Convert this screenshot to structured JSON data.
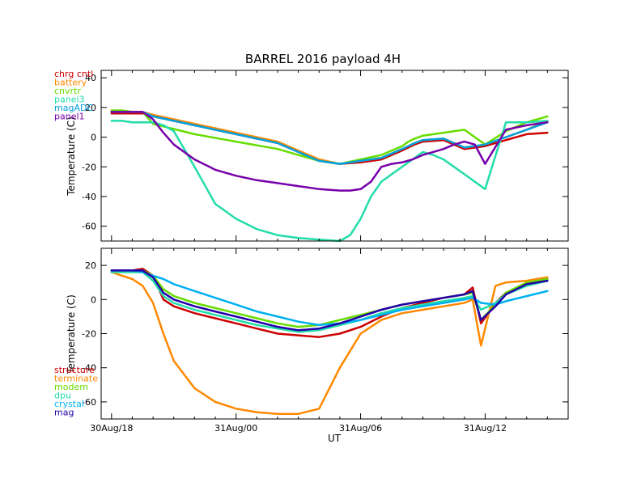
{
  "chart_data": [
    {
      "type": "line",
      "title": "BARREL 2016 payload 4H",
      "xlabel": "",
      "ylabel": "Temperature (C)",
      "xlim": [
        -6.5,
        16
      ],
      "ylim": [
        -70,
        45
      ],
      "yticks": [
        -60,
        -40,
        -20,
        0,
        20,
        40
      ],
      "ytick_labels": [
        "-60",
        "-40",
        "-20",
        "0",
        "20",
        "40"
      ],
      "xticks": [
        -6,
        0,
        6,
        12
      ],
      "xtick_labels": [
        "",
        "",
        "",
        ""
      ],
      "legend_position": "top-left",
      "series": [
        {
          "name": "chrg cntl",
          "color": "#cc0000",
          "x": [
            -6,
            -5.5,
            -5,
            -4.5,
            -4,
            -2,
            0,
            2,
            3,
            4,
            5,
            6,
            7,
            7.5,
            8,
            8.3,
            8.6,
            9,
            10,
            11,
            12,
            13,
            14,
            15
          ],
          "values": [
            16,
            16,
            16,
            16,
            14,
            8,
            2,
            -4,
            -10,
            -16,
            -18,
            -17,
            -15,
            -12,
            -9,
            -7,
            -5,
            -3,
            -2,
            -8,
            -6,
            -2,
            2,
            3
          ]
        },
        {
          "name": "battery",
          "color": "#ff8800",
          "x": [
            -6,
            -5.5,
            -5,
            -4.5,
            -4,
            -2,
            0,
            2,
            3,
            4,
            5,
            6,
            7,
            7.5,
            8,
            8.3,
            8.6,
            9,
            10,
            11,
            12,
            13,
            14,
            15
          ],
          "values": [
            17,
            17,
            17,
            17,
            15,
            9,
            3,
            -3,
            -9,
            -15,
            -18,
            -16,
            -14,
            -11,
            -8,
            -6,
            -4,
            -2,
            -1,
            -7,
            -5,
            0,
            5,
            11
          ]
        },
        {
          "name": "cnvrtr",
          "color": "#66dd00",
          "x": [
            -6,
            -5.5,
            -5,
            -4.5,
            -4,
            -2,
            0,
            2,
            3,
            4,
            5,
            6,
            7,
            7.5,
            8,
            8.3,
            8.6,
            9,
            10,
            11,
            12,
            13,
            14,
            15
          ],
          "values": [
            18,
            18,
            17,
            17,
            9,
            2,
            -3,
            -8,
            -12,
            -16,
            -18,
            -15,
            -12,
            -9,
            -6,
            -3,
            -1,
            1,
            3,
            5,
            -5,
            4,
            10,
            14
          ]
        },
        {
          "name": "panel3",
          "color": "#22ddaa",
          "x": [
            -6,
            -5.5,
            -5,
            -4.5,
            -4,
            -3.5,
            -3,
            -2,
            -1,
            0,
            1,
            2,
            3,
            4,
            5,
            5.5,
            6,
            6.5,
            7,
            7.5,
            8,
            8.5,
            9,
            9.5,
            10,
            10.5,
            11,
            11.5,
            12,
            13,
            14,
            15
          ],
          "values": [
            11,
            11,
            10,
            10,
            10,
            8,
            4,
            -20,
            -45,
            -55,
            -62,
            -66,
            -68,
            -69,
            -70,
            -66,
            -55,
            -40,
            -30,
            -25,
            -20,
            -15,
            -10,
            -12,
            -15,
            -20,
            -25,
            -30,
            -35,
            10,
            10,
            11
          ]
        },
        {
          "name": "magADC",
          "color": "#00a0e0",
          "x": [
            -6,
            -5.5,
            -5,
            -4.5,
            -4,
            -2,
            0,
            2,
            3,
            4,
            5,
            6,
            7,
            7.5,
            8,
            8.3,
            8.6,
            9,
            10,
            11,
            12,
            13,
            14,
            15
          ],
          "values": [
            17,
            17,
            17,
            17,
            14,
            8,
            2,
            -4,
            -10,
            -16,
            -18,
            -16,
            -14,
            -11,
            -8,
            -6,
            -4,
            -2,
            -1,
            -7,
            -5,
            0,
            5,
            10
          ]
        },
        {
          "name": "panel1",
          "color": "#7700aa",
          "x": [
            -6,
            -5.5,
            -5,
            -4.5,
            -4,
            -3.5,
            -3,
            -2,
            -1,
            0,
            1,
            2,
            3,
            4,
            5,
            5.5,
            6,
            6.5,
            7,
            7.5,
            8,
            8.5,
            9,
            9.5,
            10,
            10.5,
            11,
            11.5,
            12,
            13,
            14,
            15
          ],
          "values": [
            17,
            17,
            17,
            17,
            12,
            3,
            -5,
            -15,
            -22,
            -26,
            -29,
            -31,
            -33,
            -35,
            -36,
            -36,
            -35,
            -30,
            -20,
            -18,
            -17,
            -15,
            -12,
            -10,
            -8,
            -5,
            -3,
            -5,
            -18,
            5,
            8,
            10
          ]
        }
      ]
    },
    {
      "type": "line",
      "title": "",
      "xlabel": "UT",
      "ylabel": "Temperature (C)",
      "xlim": [
        -6.5,
        16
      ],
      "ylim": [
        -70,
        30
      ],
      "yticks": [
        -60,
        -40,
        -20,
        0,
        20
      ],
      "ytick_labels": [
        "-60",
        "-40",
        "-20",
        "0",
        "20"
      ],
      "xticks": [
        -6,
        0,
        6,
        12
      ],
      "xtick_labels": [
        "30Aug/18",
        "31Aug/00",
        "31Aug/06",
        "31Aug/12"
      ],
      "legend_position": "bottom-left",
      "series": [
        {
          "name": "structure",
          "color": "#cc0000",
          "x": [
            -6,
            -5.5,
            -5,
            -4.5,
            -4,
            -3.5,
            -3,
            -2,
            -1,
            0,
            1,
            2,
            3,
            4,
            5,
            6,
            7,
            8,
            9,
            10,
            11,
            11.4,
            11.8,
            12.5,
            13,
            14,
            15
          ],
          "values": [
            17,
            17,
            17,
            18,
            14,
            0,
            -4,
            -8,
            -11,
            -14,
            -17,
            -20,
            -21,
            -22,
            -20,
            -16,
            -10,
            -5,
            -2,
            1,
            3,
            7,
            -14,
            -2,
            4,
            9,
            12
          ]
        },
        {
          "name": "terminate",
          "color": "#ff8800",
          "x": [
            -6,
            -5.5,
            -5,
            -4.5,
            -4,
            -3.5,
            -3,
            -2,
            -1,
            0,
            1,
            2,
            3,
            4,
            5,
            6,
            7,
            8,
            9,
            10,
            11,
            11.4,
            11.8,
            12.5,
            13,
            14,
            15
          ],
          "values": [
            16,
            14,
            12,
            8,
            -2,
            -20,
            -36,
            -52,
            -60,
            -64,
            -66,
            -67,
            -67,
            -64,
            -40,
            -20,
            -12,
            -8,
            -6,
            -4,
            -2,
            0,
            -27,
            8,
            10,
            11,
            13
          ]
        },
        {
          "name": "modem",
          "color": "#66dd00",
          "x": [
            -6,
            -5.5,
            -5,
            -4.5,
            -4,
            -3.5,
            -3,
            -2,
            -1,
            0,
            1,
            2,
            3,
            4,
            5,
            6,
            7,
            8,
            9,
            10,
            11,
            11.4,
            11.8,
            12.5,
            13,
            14,
            15
          ],
          "values": [
            17,
            17,
            17,
            17,
            14,
            6,
            2,
            -2,
            -5,
            -8,
            -11,
            -14,
            -16,
            -15,
            -12,
            -9,
            -6,
            -3,
            -1,
            1,
            3,
            4,
            -12,
            -3,
            4,
            10,
            12
          ]
        },
        {
          "name": "dpu",
          "color": "#22ddaa",
          "x": [
            -6,
            -5.5,
            -5,
            -4.5,
            -4,
            -3.5,
            -3,
            -2,
            -1,
            0,
            1,
            2,
            3,
            4,
            5,
            6,
            7,
            8,
            9,
            10,
            11,
            11.4,
            11.8,
            12.5,
            13,
            14,
            15
          ],
          "values": [
            16,
            16,
            16,
            16,
            11,
            2,
            -2,
            -6,
            -9,
            -12,
            -15,
            -17,
            -19,
            -18,
            -15,
            -12,
            -8,
            -5,
            -3,
            -1,
            1,
            2,
            -6,
            -2,
            3,
            8,
            11
          ]
        },
        {
          "name": "crystal",
          "color": "#00b0f0",
          "x": [
            -6,
            -5.5,
            -5,
            -4.5,
            -4,
            -3.5,
            -3,
            -2,
            -1,
            0,
            1,
            2,
            3,
            4,
            5,
            6,
            7,
            8,
            9,
            10,
            11,
            11.4,
            11.8,
            12.5,
            13,
            14,
            15
          ],
          "values": [
            17,
            17,
            17,
            16,
            14,
            12,
            9,
            5,
            1,
            -3,
            -7,
            -10,
            -13,
            -15,
            -14,
            -12,
            -9,
            -6,
            -4,
            -2,
            0,
            1,
            -2,
            -3,
            -1,
            2,
            5
          ]
        },
        {
          "name": "mag",
          "color": "#2200aa",
          "x": [
            -6,
            -5.5,
            -5,
            -4.5,
            -4,
            -3.5,
            -3,
            -2,
            -1,
            0,
            1,
            2,
            3,
            4,
            5,
            6,
            7,
            8,
            9,
            10,
            11,
            11.4,
            11.8,
            12.5,
            13,
            14,
            15
          ],
          "values": [
            17,
            17,
            17,
            17,
            13,
            4,
            0,
            -4,
            -7,
            -10,
            -13,
            -16,
            -18,
            -17,
            -14,
            -10,
            -6,
            -3,
            -1,
            1,
            3,
            5,
            -12,
            -4,
            3,
            9,
            11
          ]
        }
      ]
    }
  ]
}
